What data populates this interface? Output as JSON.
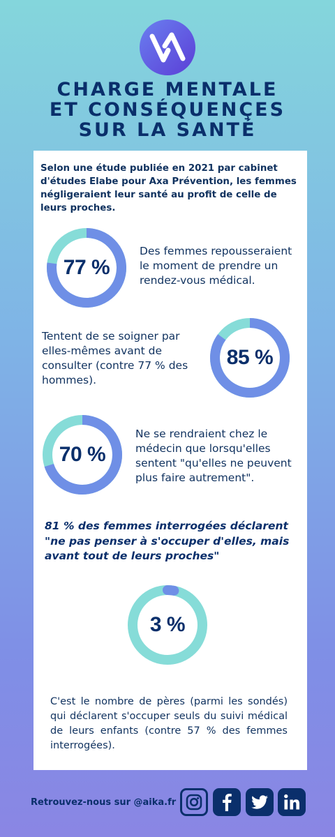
{
  "brand": {
    "logo_icon": "aika-logo",
    "colors": {
      "navy": "#0a2f6b",
      "ring_light": "#86dcd8",
      "ring_dark": "#6f8fe6"
    }
  },
  "title": {
    "line1": "CHARGE MENTALE",
    "line2": "ET CONSÉQUENÇES",
    "line3": "SUR LA SANTÉ"
  },
  "intro": "Selon une étude publiée en 2021 par cabinet d'études Elabe pour Axa Prévention, les femmes négligeraient leur santé au profit de celle de leurs proches.",
  "stats": [
    {
      "value": 77,
      "label": "77 %",
      "text": "Des femmes repousseraient le moment de prendre un rendez-vous médical."
    },
    {
      "value": 85,
      "label": "85 %",
      "text": "Tentent de se soigner par elles-mêmes avant de consulter (contre 77 % des hommes)."
    },
    {
      "value": 70,
      "label": "70 %",
      "text": "Ne se rendraient chez le médecin que lorsqu'elles sentent \"qu'elles ne peuvent plus faire autrement\"."
    }
  ],
  "quote": "81 % des femmes interrogées déclarent \"ne pas penser à s'occuper d'elles, mais avant tout de leurs proches\"",
  "final_stat": {
    "value": 3,
    "label": "3 %",
    "text": "C'est le nombre de pères (parmi les sondés) qui déclarent s'occuper seuls du suivi médical de leurs enfants (contre 57 % des femmes interrogées)."
  },
  "footer": {
    "text": "Retrouvez-nous sur @aika.fr",
    "icons": [
      "instagram-icon",
      "facebook-icon",
      "twitter-icon",
      "linkedin-icon"
    ]
  }
}
